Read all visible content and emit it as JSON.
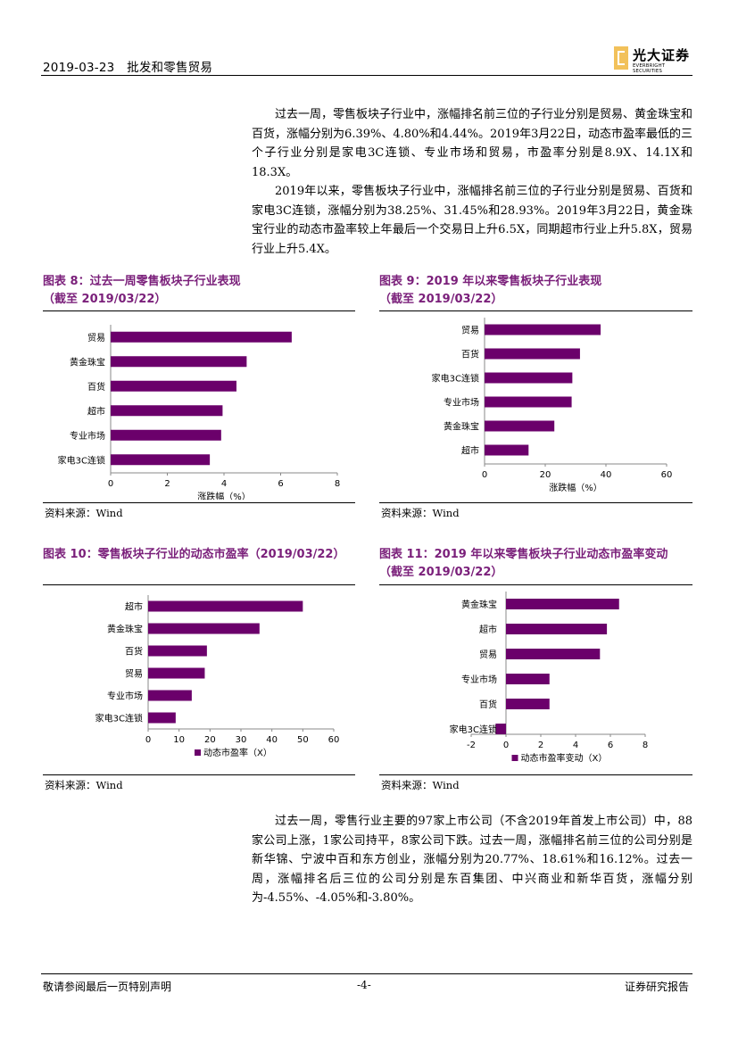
{
  "header": {
    "date_section": "2019-03-23　批发和零售贸易",
    "logo_cn": "光大证券",
    "logo_en": "EVERBRIGHT SECURITIES"
  },
  "intro": {
    "p1": "过去一周，零售板块子行业中，涨幅排名前三位的子行业分别是贸易、黄金珠宝和百货，涨幅分别为6.39%、4.80%和4.44%。2019年3月22日，动态市盈率最低的三个子行业分别是家电3C连锁、专业市场和贸易，市盈率分别是8.9X、14.1X和18.3X。",
    "p2": "2019年以来，零售板块子行业中，涨幅排名前三位的子行业分别是贸易、百货和家电3C连锁，涨幅分别为38.25%、31.45%和28.93%。2019年3月22日，黄金珠宝行业的动态市盈率较上年最后一个交易日上升6.5X，同期超市行业上升5.8X，贸易行业上升5.4X。"
  },
  "figures": {
    "fig8": {
      "title_line1": "图表 8：过去一周零售板块子行业表现",
      "title_line2": "（截至 2019/03/22）",
      "source": "资料来源：Wind"
    },
    "fig9": {
      "title_line1": "图表 9：2019 年以来零售板块子行业表现",
      "title_line2": "（截至 2019/03/22）",
      "source": "资料来源：Wind"
    },
    "fig10": {
      "title_line1": "图表 10：零售板块子行业的动态市盈率（2019/03/22）",
      "source": "资料来源：Wind"
    },
    "fig11": {
      "title_line1": "图表 11：2019 年以来零售板块子行业动态市盈率变动",
      "title_line2": "（截至 2019/03/22）",
      "source": "资料来源：Wind"
    }
  },
  "chart_data": [
    {
      "id": "fig8",
      "type": "bar",
      "orientation": "horizontal",
      "categories": [
        "贸易",
        "黄金珠宝",
        "百货",
        "超市",
        "专业市场",
        "家电3C连锁"
      ],
      "values": [
        6.39,
        4.8,
        4.44,
        3.95,
        3.9,
        3.5
      ],
      "xlim": [
        0,
        8
      ],
      "xticks": [
        "0",
        "2",
        "4",
        "6",
        "8"
      ],
      "xlabel": "涨跌幅（%）",
      "legend": false
    },
    {
      "id": "fig9",
      "type": "bar",
      "orientation": "horizontal",
      "categories": [
        "贸易",
        "百货",
        "家电3C连锁",
        "专业市场",
        "黄金珠宝",
        "超市"
      ],
      "values": [
        38.25,
        31.45,
        28.93,
        28.7,
        23.0,
        14.5
      ],
      "xlim": [
        0,
        60
      ],
      "xticks": [
        "0",
        "20",
        "40",
        "60"
      ],
      "xlabel": "涨跌幅（%）",
      "legend": false
    },
    {
      "id": "fig10",
      "type": "bar",
      "orientation": "horizontal",
      "categories": [
        "超市",
        "黄金珠宝",
        "百货",
        "贸易",
        "专业市场",
        "家电3C连锁"
      ],
      "values": [
        50.0,
        36.0,
        19.0,
        18.3,
        14.1,
        8.9
      ],
      "xlim": [
        0,
        60
      ],
      "xticks": [
        "0",
        "10",
        "20",
        "30",
        "40",
        "50",
        "60"
      ],
      "xlabel": "",
      "legend": true,
      "legend_label": "动态市盈率（X）"
    },
    {
      "id": "fig11",
      "type": "bar",
      "orientation": "horizontal",
      "categories": [
        "黄金珠宝",
        "超市",
        "贸易",
        "专业市场",
        "百货",
        "家电3C连锁"
      ],
      "values": [
        6.5,
        5.8,
        5.4,
        2.5,
        2.5,
        -0.6
      ],
      "xlim": [
        -2,
        8
      ],
      "xticks": [
        "-2",
        "0",
        "2",
        "4",
        "6",
        "8"
      ],
      "xlabel": "",
      "legend": true,
      "legend_label": "动态市盈率变动（X）"
    }
  ],
  "outro": {
    "p1": "过去一周，零售行业主要的97家上市公司（不含2019年首发上市公司）中，88家公司上涨，1家公司持平，8家公司下跌。过去一周，涨幅排名前三位的公司分别是新华锦、宁波中百和东方创业，涨幅分别为20.77%、18.61%和16.12%。过去一周，涨幅排名后三位的公司分别是东百集团、中兴商业和新华百货，涨幅分别为-4.55%、-4.05%和-3.80%。"
  },
  "footer": {
    "left": "敬请参阅最后一页特别声明",
    "center": "-4-",
    "right": "证券研究报告"
  },
  "colors": {
    "bar": "#6b006b",
    "title": "#7a1f7a",
    "logo": "#f2c15a"
  }
}
